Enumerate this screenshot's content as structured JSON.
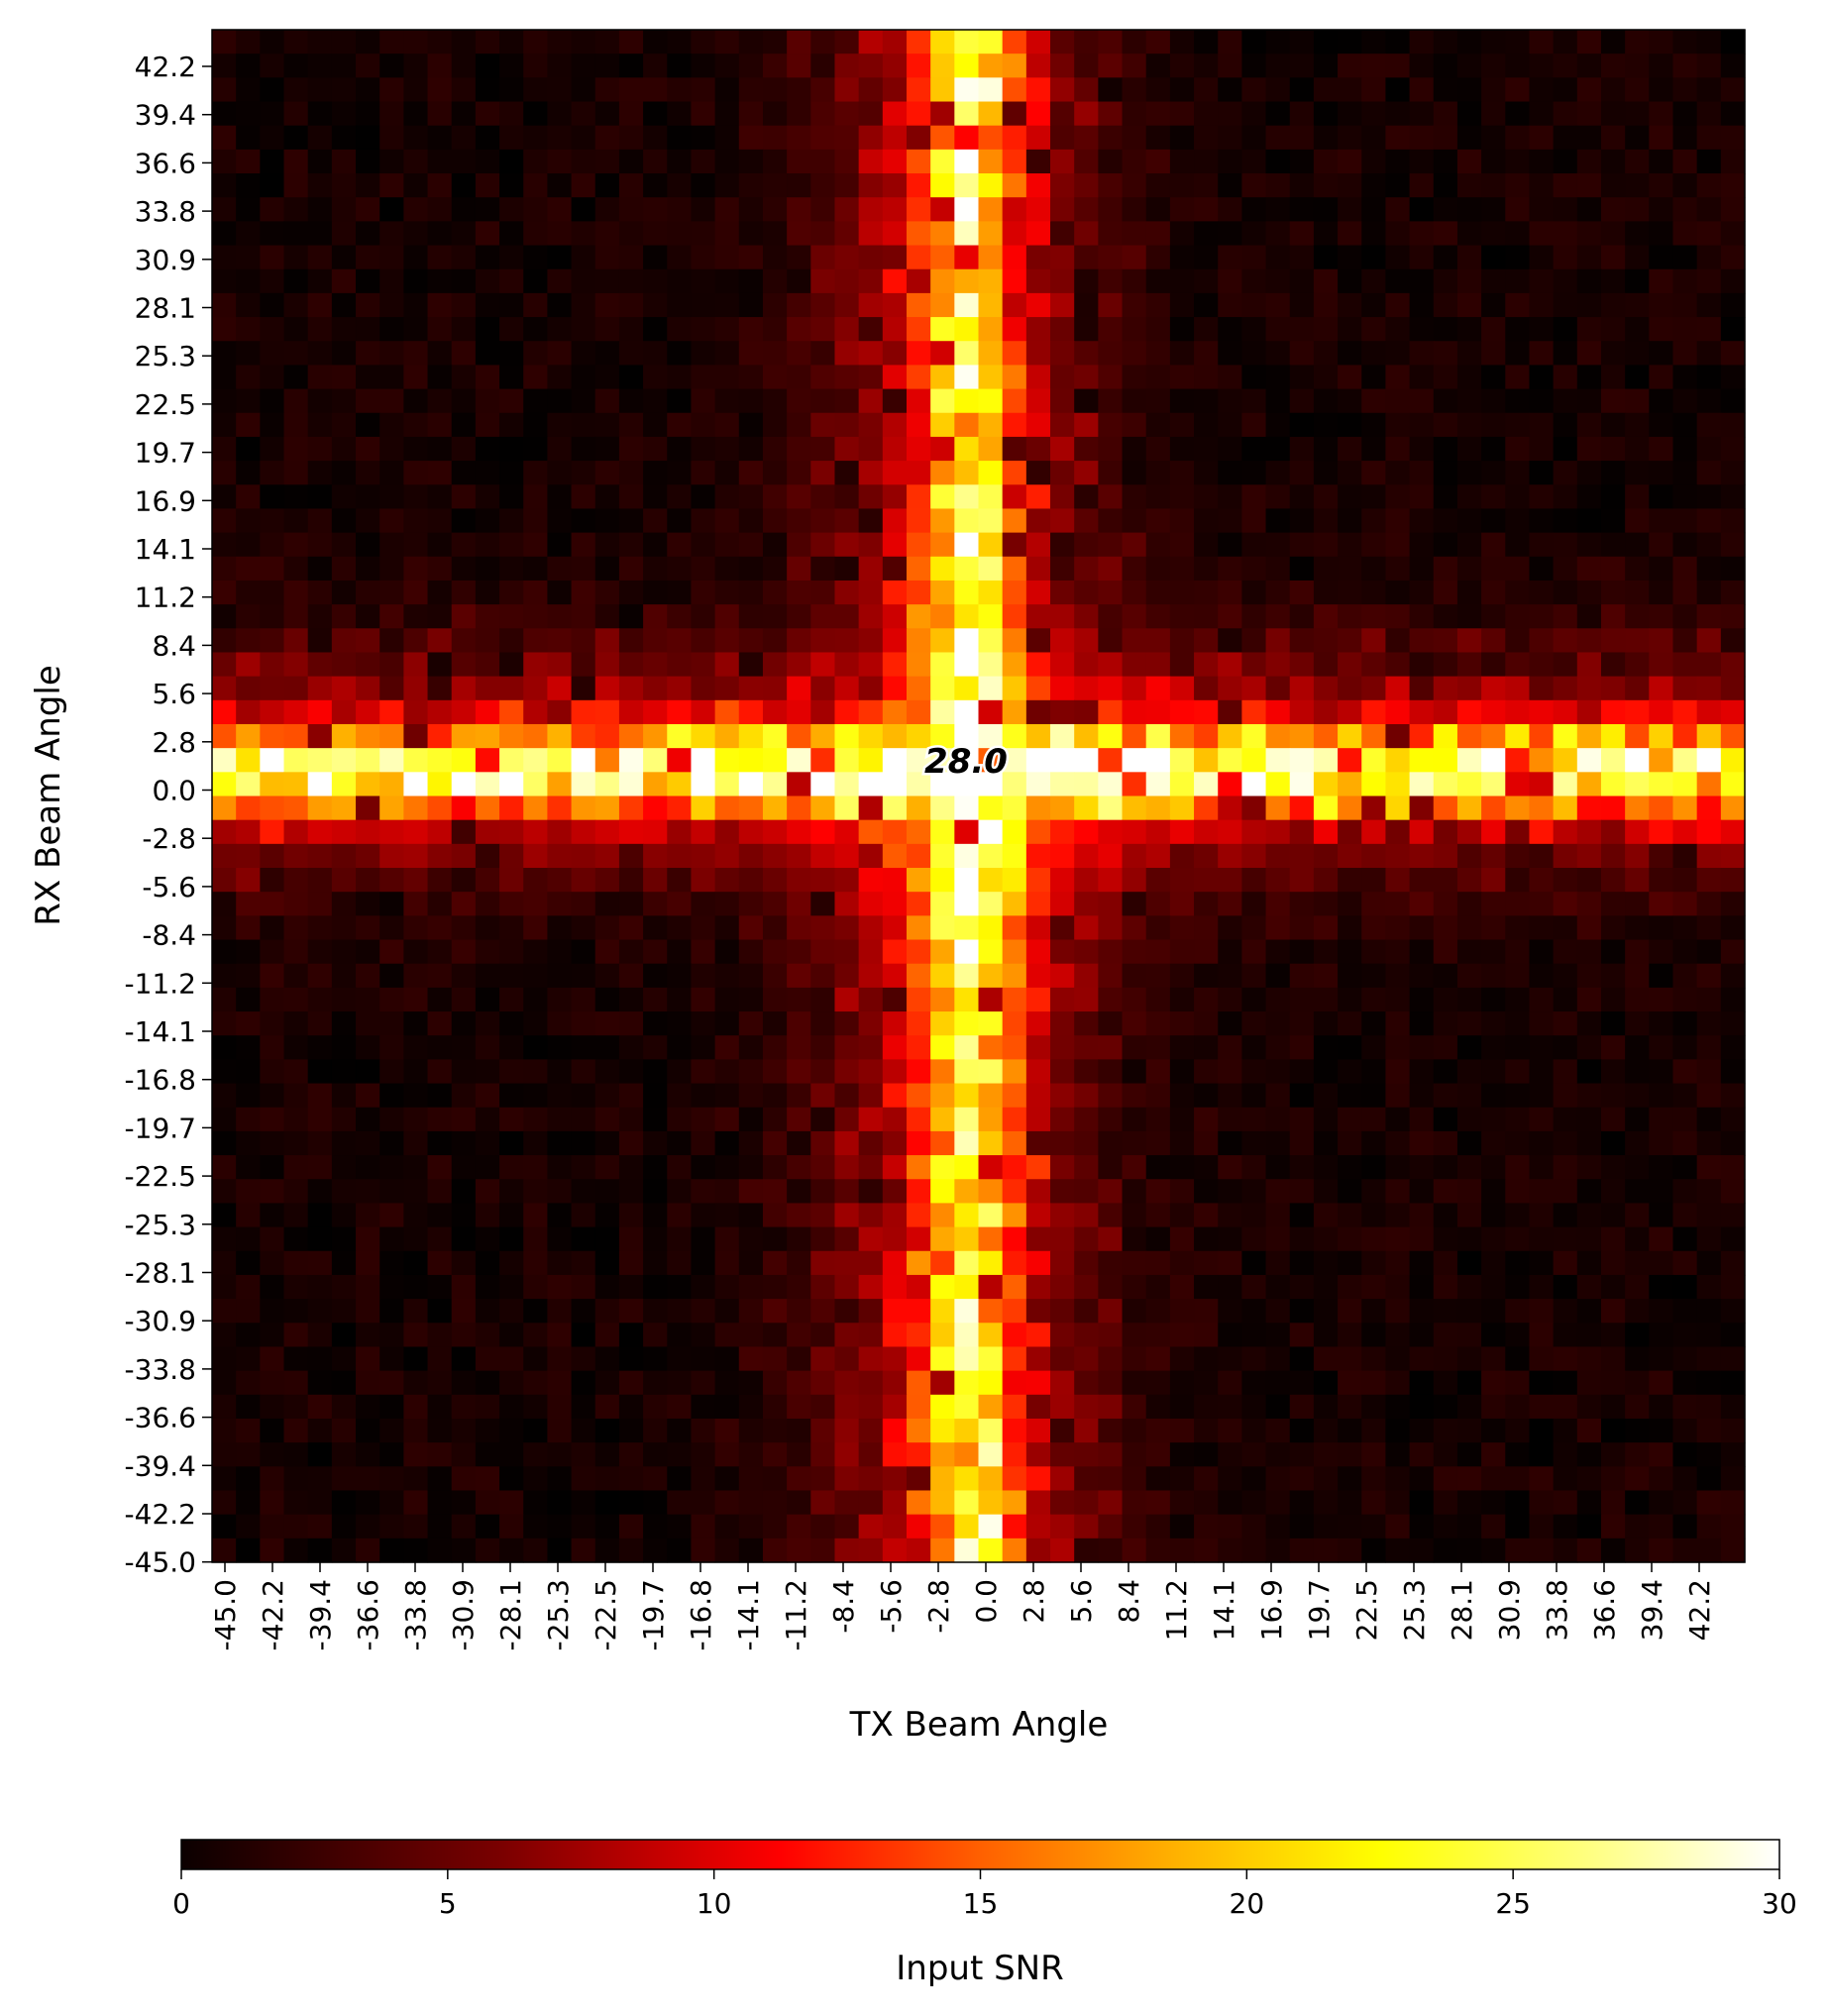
{
  "chart_data": {
    "type": "heatmap",
    "title": "",
    "xlabel": "TX Beam Angle",
    "ylabel": "RX Beam Angle",
    "x_range": [
      -45.0,
      45.0
    ],
    "y_range": [
      -45.0,
      45.0
    ],
    "grid_size": [
      64,
      64
    ],
    "x_tick_labels": [
      "-45.0",
      "-42.2",
      "-39.4",
      "-36.6",
      "-33.8",
      "-30.9",
      "-28.1",
      "-25.3",
      "-22.5",
      "-19.7",
      "-16.8",
      "-14.1",
      "-11.2",
      "-8.4",
      "-5.6",
      "-2.8",
      "0.0",
      "2.8",
      "5.6",
      "8.4",
      "11.2",
      "14.1",
      "16.9",
      "19.7",
      "22.5",
      "25.3",
      "28.1",
      "30.9",
      "33.8",
      "36.6",
      "39.4",
      "42.2"
    ],
    "y_tick_labels": [
      "42.2",
      "39.4",
      "36.6",
      "33.8",
      "30.9",
      "28.1",
      "25.3",
      "22.5",
      "19.7",
      "16.9",
      "14.1",
      "11.2",
      "8.4",
      "5.6",
      "2.8",
      "0.0",
      "-2.8",
      "-5.6",
      "-8.4",
      "-11.2",
      "-14.1",
      "-16.8",
      "-19.7",
      "-22.5",
      "-25.3",
      "-28.1",
      "-30.9",
      "-33.8",
      "-36.6",
      "-39.4",
      "-42.2",
      "-45.0"
    ],
    "colormap": "hot",
    "colorbar": {
      "label": "Input SNR",
      "range": [
        0,
        30
      ],
      "ticks": [
        "0",
        "5",
        "10",
        "15",
        "20",
        "25",
        "30"
      ],
      "position": "bottom"
    },
    "peak": {
      "tx": 0.0,
      "rx": 0.0,
      "value_label": "28.0"
    },
    "pattern": {
      "description_values_snr": "main lobe ~28 at (0,0); horizontal band RX 0..3 ~20; vertical band TX -3..3 ~18; background ~0-2",
      "main_lobe_peak": 28.0,
      "rx_band_level": 20.0,
      "tx_band_level": 18.0,
      "background_level": 1.0
    }
  }
}
